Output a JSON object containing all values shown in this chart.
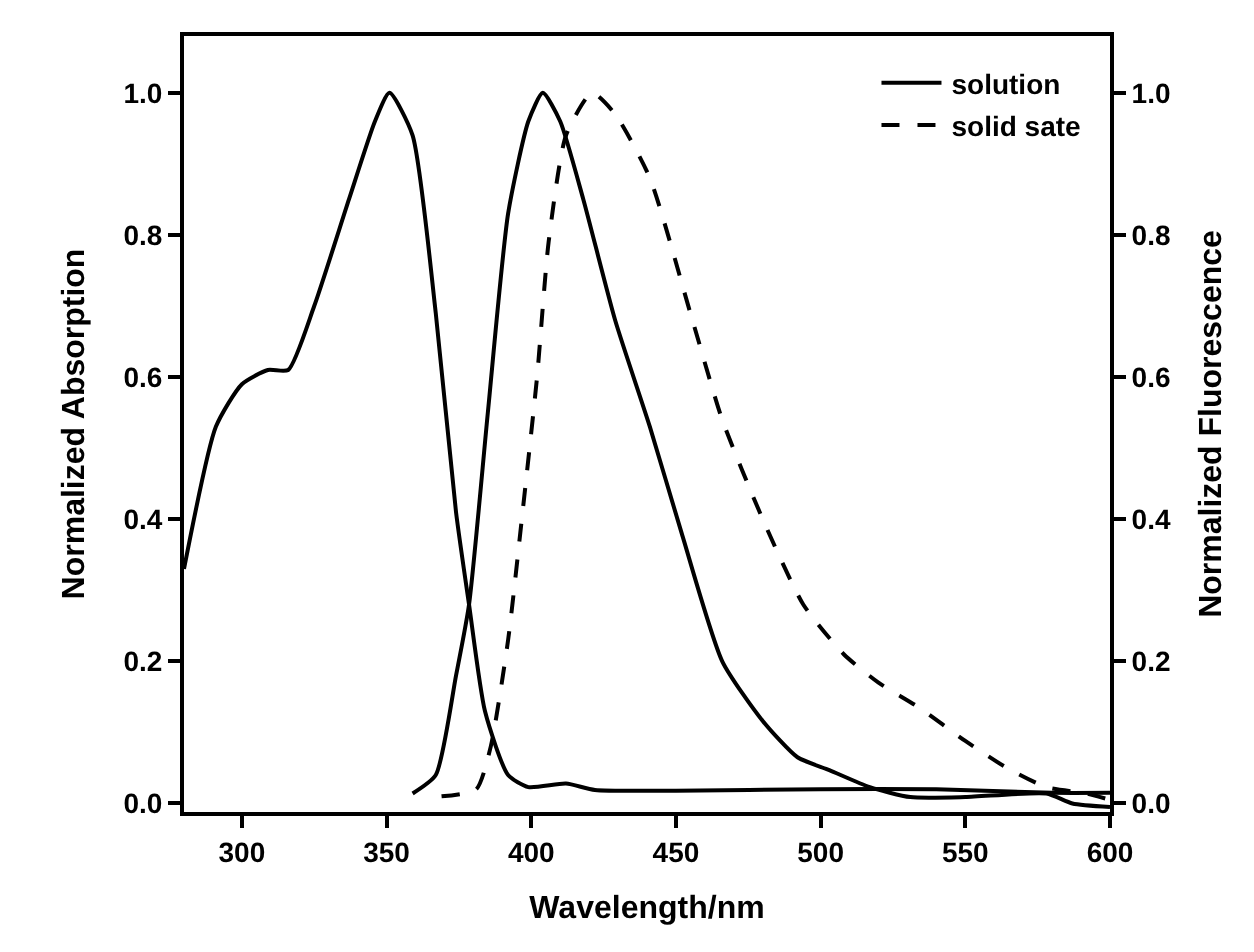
{
  "chart_data": {
    "type": "line",
    "xlabel": "Wavelength/nm",
    "ylabel": "Normalized Absorption",
    "y2label": "Normalized Fluorescence",
    "xlim": [
      280,
      600
    ],
    "xticks": [
      300,
      350,
      400,
      450,
      500,
      550,
      600
    ],
    "ylim": [
      -0.012,
      1.08
    ],
    "yticks": [
      {
        "value": 0,
        "label": "0.0"
      },
      0.2,
      0.4,
      0.6,
      0.8,
      {
        "value": 1,
        "label": "1.0"
      }
    ],
    "y2lim": [
      -0.012,
      1.08
    ],
    "y2ticks": [
      {
        "value": 0,
        "label": "0.0"
      },
      0.2,
      0.4,
      0.6,
      0.8,
      {
        "value": 1,
        "label": "1.0"
      }
    ],
    "legend": "top right",
    "marker": "none",
    "series": [
      {
        "color": "#000000",
        "line_style": "solid",
        "x": [
          280,
          291,
          300,
          309,
          316,
          325,
          337,
          346,
          351,
          359,
          367,
          374,
          378.5,
          384,
          392,
          399,
          412,
          422,
          450,
          500,
          540,
          580,
          600
        ],
        "values": [
          0.33,
          0.53,
          0.59,
          0.61,
          0.61,
          0.7,
          0.85,
          0.96,
          1.0,
          0.94,
          0.69,
          0.41,
          0.28,
          0.13,
          0.04,
          0.023,
          0.028,
          0.019,
          0.018,
          0.02,
          0.02,
          0.015,
          0.015
        ]
      },
      {
        "name": "solution",
        "color": "#000000",
        "line_style": "solid",
        "axis": "y2",
        "x": [
          359,
          367,
          374,
          378.5,
          385,
          392,
          399,
          404,
          410,
          418,
          429,
          441,
          452,
          466,
          480,
          492,
          503,
          517,
          531,
          550,
          578,
          587,
          600
        ],
        "values": [
          0.014,
          0.04,
          0.18,
          0.28,
          0.55,
          0.83,
          0.96,
          1.0,
          0.96,
          0.85,
          0.68,
          0.53,
          0.38,
          0.2,
          0.116,
          0.065,
          0.047,
          0.023,
          0.009,
          0.009,
          0.014,
          0.0,
          -0.005
        ]
      },
      {
        "name": "solid sate",
        "color": "#000000",
        "line_style": "dashed",
        "axis": "y2",
        "x": [
          369,
          381,
          386,
          392,
          397,
          402,
          406,
          412,
          421,
          429,
          441,
          455,
          466,
          480,
          494,
          508,
          520,
          534,
          550,
          564,
          578,
          592,
          600
        ],
        "values": [
          0.01,
          0.02,
          0.08,
          0.23,
          0.41,
          0.6,
          0.79,
          0.94,
          1.0,
          0.97,
          0.88,
          0.69,
          0.54,
          0.4,
          0.28,
          0.21,
          0.17,
          0.135,
          0.088,
          0.051,
          0.023,
          0.014,
          0.005
        ]
      }
    ]
  }
}
